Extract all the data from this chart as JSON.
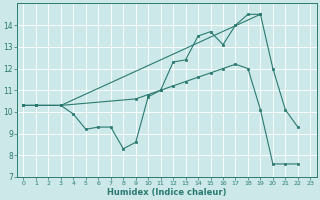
{
  "xlabel": "Humidex (Indice chaleur)",
  "bg_color": "#cce8e8",
  "grid_color": "#ffffff",
  "line_color": "#2a7a70",
  "xlim": [
    -0.5,
    23.5
  ],
  "ylim": [
    7,
    15
  ],
  "yticks": [
    7,
    8,
    9,
    10,
    11,
    12,
    13,
    14
  ],
  "xticks": [
    0,
    1,
    2,
    3,
    4,
    5,
    6,
    7,
    8,
    9,
    10,
    11,
    12,
    13,
    14,
    15,
    16,
    17,
    18,
    19,
    20,
    21,
    22,
    23
  ],
  "series": [
    {
      "x": [
        0,
        1,
        3,
        4,
        5,
        6,
        7,
        8,
        9,
        10,
        11,
        12,
        13,
        14,
        15,
        16,
        17,
        18,
        19,
        20,
        21,
        22
      ],
      "y": [
        10.3,
        10.3,
        10.3,
        9.9,
        9.2,
        9.3,
        9.3,
        8.3,
        8.6,
        10.7,
        11.0,
        12.3,
        12.4,
        13.5,
        13.7,
        13.1,
        14.0,
        14.5,
        14.5,
        12.0,
        10.1,
        9.3
      ]
    },
    {
      "x": [
        0,
        1,
        3,
        9,
        10,
        11,
        12,
        13,
        14,
        15,
        16,
        17,
        18,
        19,
        20,
        21,
        22
      ],
      "y": [
        10.3,
        10.3,
        10.3,
        10.6,
        10.8,
        11.0,
        11.2,
        11.4,
        11.6,
        11.8,
        12.0,
        12.2,
        12.0,
        10.1,
        7.6,
        7.6,
        7.6
      ]
    },
    {
      "x": [
        0,
        1,
        3,
        19
      ],
      "y": [
        10.3,
        10.3,
        10.3,
        14.5
      ]
    }
  ]
}
